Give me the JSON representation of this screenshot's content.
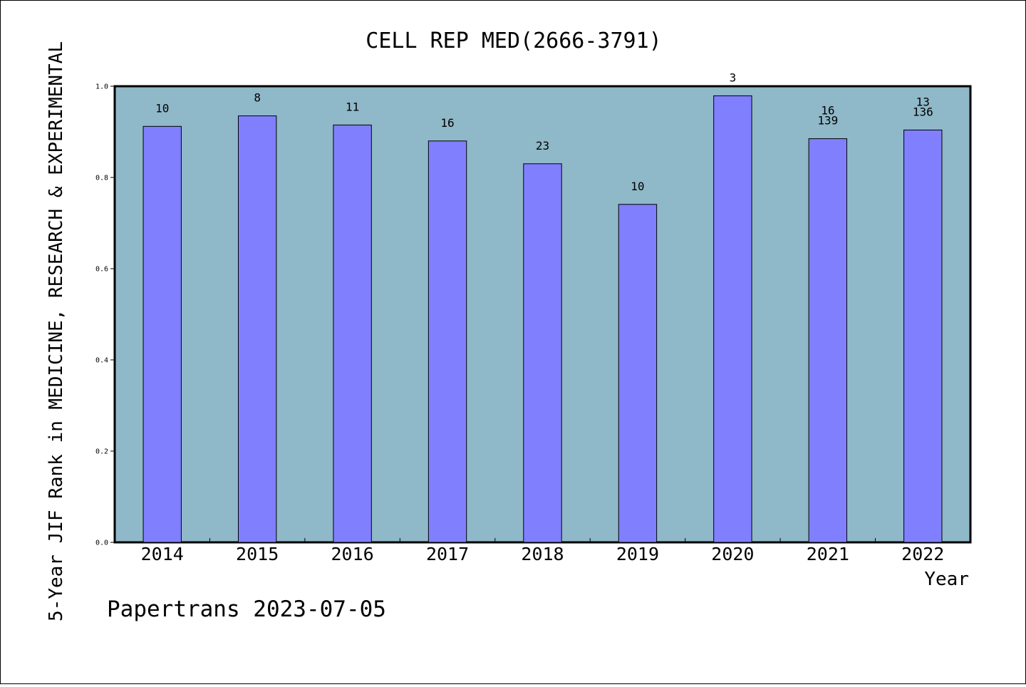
{
  "chart_data": {
    "type": "bar",
    "title": "CELL REP MED(2666-3791)",
    "xlabel": "Year",
    "ylabel": "5-Year JIF Rank in MEDICINE, RESEARCH & EXPERIMENTAL",
    "ylim": [
      0,
      1.0
    ],
    "yticks": [
      "0.0",
      "0.2",
      "0.4",
      "0.6",
      "0.8",
      "1.0"
    ],
    "categories": [
      "2014",
      "2015",
      "2016",
      "2017",
      "2018",
      "2019",
      "2020",
      "2021",
      "2022"
    ],
    "values": [
      0.912,
      0.935,
      0.915,
      0.88,
      0.83,
      0.741,
      0.979,
      0.885,
      0.904
    ],
    "labels": [
      "10",
      "8",
      "11",
      "16",
      "23",
      "10",
      "3",
      "16\n139",
      "13\n136"
    ],
    "grid": false,
    "colors": {
      "plot_background": "#8fb8c8",
      "bar_fill": "#8080ff",
      "bar_stroke": "#000000"
    }
  },
  "footer": "Papertrans 2023-07-05"
}
